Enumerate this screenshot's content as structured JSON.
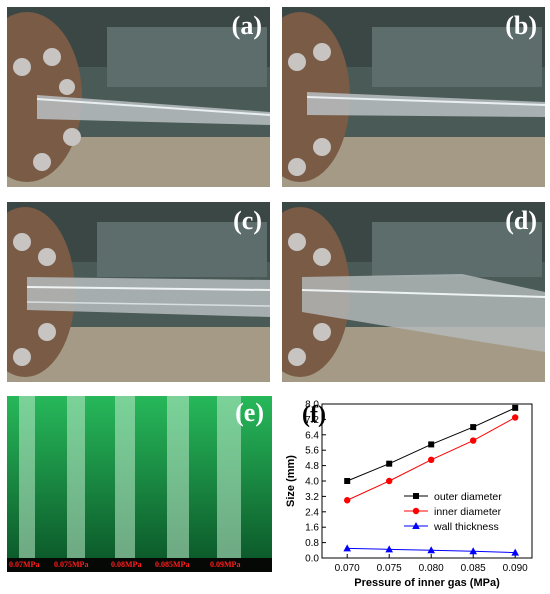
{
  "panels": {
    "a": {
      "label": "(a)"
    },
    "b": {
      "label": "(b)"
    },
    "c": {
      "label": "(c)"
    },
    "d": {
      "label": "(d)"
    },
    "e": {
      "label": "(e)",
      "tube_labels": [
        "0.07MPa",
        "0.075MPa",
        "0.08MPa",
        "0.085MPa",
        "0.09MPa"
      ]
    },
    "f": {
      "label": "(f)"
    }
  },
  "colors": {
    "photo_bg": "#4b5a55",
    "metal": "#8a6b52",
    "gauge_green": "#1fa84a",
    "label_red": "#ff1d1d"
  },
  "chart_data": {
    "type": "line",
    "xlabel": "Pressure of inner gas (MPa)",
    "ylabel": "Size (mm)",
    "x": [
      0.07,
      0.075,
      0.08,
      0.085,
      0.09
    ],
    "x_ticks": [
      "0.070",
      "0.075",
      "0.080",
      "0.085",
      "0.090"
    ],
    "xlim": [
      0.067,
      0.092
    ],
    "ylim": [
      0,
      8.0
    ],
    "y_ticks": [
      "0.0",
      "0.8",
      "1.6",
      "2.4",
      "3.2",
      "4.0",
      "4.8",
      "5.6",
      "6.4",
      "7.2",
      "8.0"
    ],
    "legend_position": "bottom-right",
    "grid": false,
    "series": [
      {
        "name": "outer diameter",
        "color": "#000000",
        "marker": "square",
        "values": [
          4.0,
          4.9,
          5.9,
          6.8,
          7.8
        ]
      },
      {
        "name": "inner diameter",
        "color": "#ff0000",
        "marker": "circle",
        "values": [
          3.0,
          4.0,
          5.1,
          6.1,
          7.3
        ]
      },
      {
        "name": "wall thickness",
        "color": "#0000ff",
        "marker": "triangle",
        "values": [
          0.5,
          0.45,
          0.4,
          0.35,
          0.28
        ]
      }
    ]
  }
}
